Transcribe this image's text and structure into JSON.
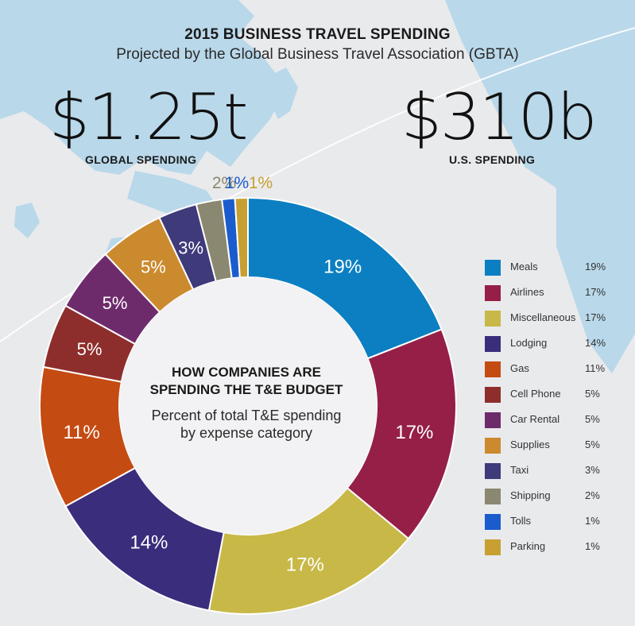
{
  "header": {
    "title": "2015 BUSINESS TRAVEL SPENDING",
    "subtitle": "Projected by the Global Business Travel Association (GBTA)"
  },
  "stats": {
    "global_value": "$1.25t",
    "global_label": "GLOBAL SPENDING",
    "us_value": "$310b",
    "us_label": "U.S. SPENDING"
  },
  "center": {
    "title_line1": "HOW COMPANIES ARE",
    "title_line2": "SPENDING THE T&E BUDGET",
    "sub_line1": "Percent of total T&E spending",
    "sub_line2": "by expense category"
  },
  "colors": {
    "map_land": "#b9d8ea",
    "background": "#e9eaec",
    "donut_center": "#f2f2f4"
  },
  "chart_data": {
    "type": "pie",
    "donut": true,
    "categories": [
      "Meals",
      "Airlines",
      "Miscellaneous",
      "Lodging",
      "Gas",
      "Cell Phone",
      "Car Rental",
      "Supplies",
      "Taxi",
      "Shipping",
      "Tolls",
      "Parking"
    ],
    "values": [
      19,
      17,
      17,
      14,
      11,
      5,
      5,
      5,
      3,
      2,
      1,
      1
    ],
    "labels": [
      "19%",
      "17%",
      "17%",
      "14%",
      "11%",
      "5%",
      "5%",
      "5%",
      "3%",
      "2%",
      "1%",
      "1%"
    ],
    "colors": [
      "#0b7fc2",
      "#961f47",
      "#c8b848",
      "#3a2d7c",
      "#c44b12",
      "#8e2e2c",
      "#6e2b6c",
      "#cc8a2e",
      "#3f3a7a",
      "#8a8870",
      "#1a5ccd",
      "#c8a032"
    ],
    "legend_placement": "right"
  }
}
